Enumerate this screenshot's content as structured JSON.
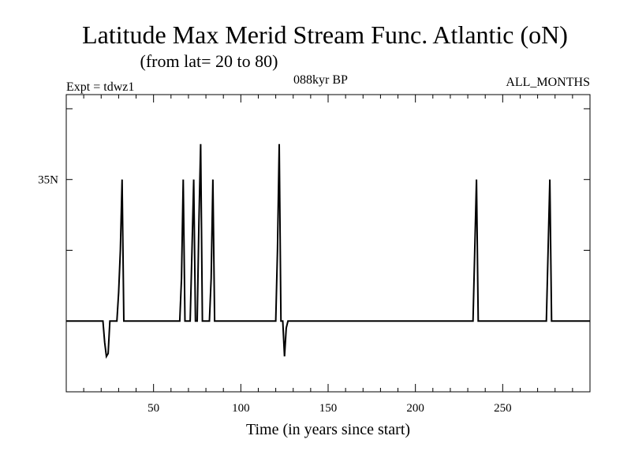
{
  "chart_data": {
    "type": "line",
    "title": "Latitude Max Merid Stream Func. Atlantic (oN)",
    "subtitle": "(from lat= 20 to 80)",
    "annotations": {
      "left": "Expt = tdwz1",
      "center": "088kyr BP",
      "right": "ALL_MONTHS"
    },
    "xlabel": "Time (in years since start)",
    "ylabel": "",
    "xlim": [
      0,
      300
    ],
    "ylim": [
      20,
      41
    ],
    "x_ticks": [
      50,
      100,
      150,
      200,
      250
    ],
    "y_tick_labels": [
      {
        "value": 35,
        "label": "35N"
      }
    ],
    "grid": false,
    "series": [
      {
        "x": [
          0,
          21,
          22,
          23,
          24,
          25,
          29,
          30,
          31,
          32,
          33,
          36,
          64,
          65,
          66,
          67,
          68,
          71,
          72,
          73,
          74,
          75,
          76,
          77,
          78,
          79,
          82,
          83,
          84,
          85,
          86,
          88,
          119,
          120,
          121,
          122,
          123,
          124,
          125,
          126,
          127,
          128,
          232,
          233,
          234,
          235,
          236,
          237,
          275,
          276,
          277,
          278,
          279,
          300
        ],
        "y": [
          25,
          25,
          23.5,
          22.5,
          22.7,
          25,
          25,
          27,
          30,
          35,
          25,
          25,
          25,
          25,
          28,
          35,
          25,
          25,
          30,
          35,
          25,
          25,
          32,
          37.5,
          25,
          25,
          25,
          28,
          35,
          25,
          25,
          25,
          25,
          25,
          30,
          37.5,
          25,
          25,
          22.5,
          24.5,
          25,
          25,
          25,
          25,
          30,
          35,
          25,
          25,
          25,
          30,
          35,
          25,
          25,
          25
        ]
      }
    ]
  }
}
